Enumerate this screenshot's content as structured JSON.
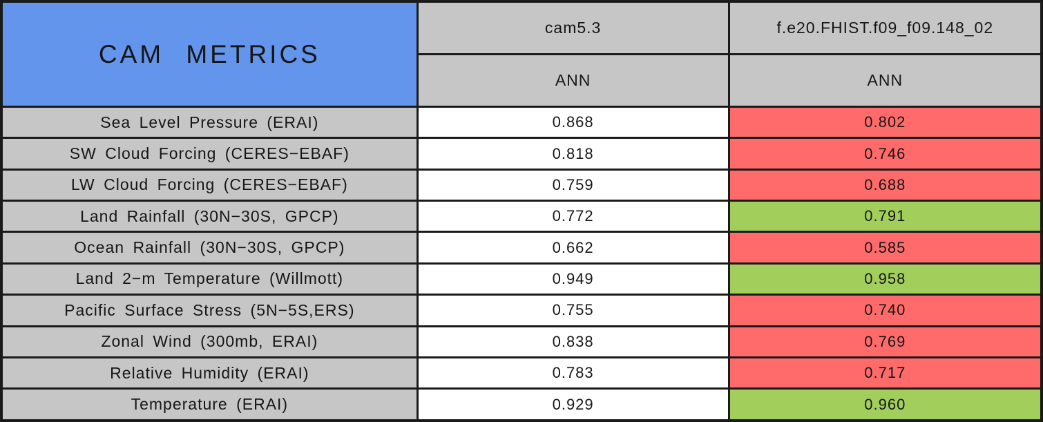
{
  "chart_data": {
    "type": "table",
    "title": "CAM METRICS",
    "header": {
      "columns": [
        {
          "model": "cam5.3",
          "subheader": "ANN"
        },
        {
          "model": "f.e20.FHIST.f09_f09.148_02",
          "subheader": "ANN"
        }
      ]
    },
    "rows": [
      {
        "metric": "Sea Level Pressure (ERAI)",
        "values": [
          "0.868",
          "0.802"
        ],
        "comparison": "worse"
      },
      {
        "metric": "SW Cloud Forcing (CERES−EBAF)",
        "values": [
          "0.818",
          "0.746"
        ],
        "comparison": "worse"
      },
      {
        "metric": "LW Cloud Forcing (CERES−EBAF)",
        "values": [
          "0.759",
          "0.688"
        ],
        "comparison": "worse"
      },
      {
        "metric": "Land Rainfall (30N−30S, GPCP)",
        "values": [
          "0.772",
          "0.791"
        ],
        "comparison": "better"
      },
      {
        "metric": "Ocean Rainfall (30N−30S, GPCP)",
        "values": [
          "0.662",
          "0.585"
        ],
        "comparison": "worse"
      },
      {
        "metric": "Land 2−m Temperature (Willmott)",
        "values": [
          "0.949",
          "0.958"
        ],
        "comparison": "better"
      },
      {
        "metric": "Pacific Surface Stress (5N−5S,ERS)",
        "values": [
          "0.755",
          "0.740"
        ],
        "comparison": "worse"
      },
      {
        "metric": "Zonal Wind (300mb, ERAI)",
        "values": [
          "0.838",
          "0.769"
        ],
        "comparison": "worse"
      },
      {
        "metric": "Relative Humidity (ERAI)",
        "values": [
          "0.783",
          "0.717"
        ],
        "comparison": "worse"
      },
      {
        "metric": "Temperature (ERAI)",
        "values": [
          "0.929",
          "0.960"
        ],
        "comparison": "better"
      }
    ],
    "colors": {
      "title_bg": "#6495ED",
      "header_bg": "#C6C6C6",
      "label_bg": "#C6C6C6",
      "value_bg": "#FFFFFF",
      "better_bg": "#A2CE5C",
      "worse_bg": "#FF6B6B",
      "border": "#1A1A1A"
    }
  }
}
